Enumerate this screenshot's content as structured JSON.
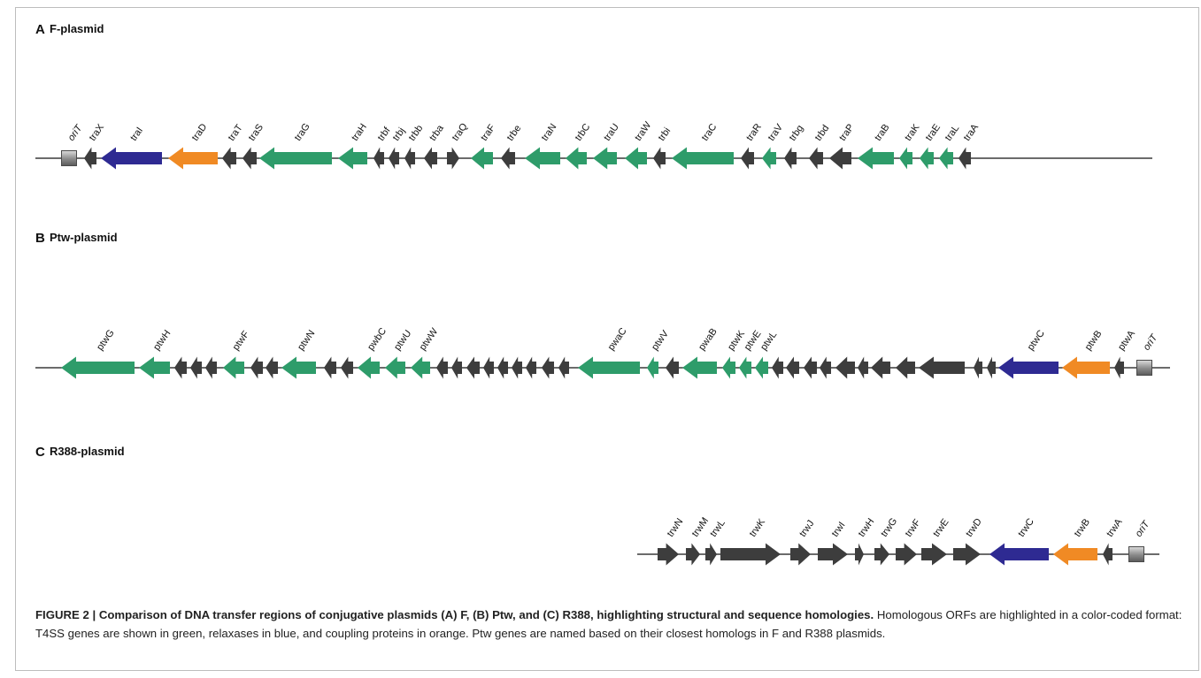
{
  "colors": {
    "t4ss": "#2e9c6a",
    "relaxase": "#2e2a92",
    "coupling": "#f08a24",
    "other": "#3d3d3d"
  },
  "panels": [
    {
      "letter": "A",
      "name": "F-plasmid",
      "genes": [
        {
          "label": "oriT",
          "type": "oriT"
        },
        {
          "label": "traX",
          "type": "other",
          "dir": "left"
        },
        {
          "label": "traI",
          "type": "relaxase",
          "dir": "left"
        },
        {
          "label": "traD",
          "type": "coupling",
          "dir": "left"
        },
        {
          "label": "traT",
          "type": "other",
          "dir": "left"
        },
        {
          "label": "traS",
          "type": "other",
          "dir": "left"
        },
        {
          "label": "traG",
          "type": "t4ss",
          "dir": "left"
        },
        {
          "label": "traH",
          "type": "t4ss",
          "dir": "left"
        },
        {
          "label": "trbf",
          "type": "other",
          "dir": "left"
        },
        {
          "label": "trbj",
          "type": "other",
          "dir": "left"
        },
        {
          "label": "trbb",
          "type": "other",
          "dir": "left"
        },
        {
          "label": "trba",
          "type": "other",
          "dir": "left"
        },
        {
          "label": "traQ",
          "type": "other",
          "dir": "right"
        },
        {
          "label": "traF",
          "type": "t4ss",
          "dir": "left"
        },
        {
          "label": "trbe",
          "type": "other",
          "dir": "left"
        },
        {
          "label": "traN",
          "type": "t4ss",
          "dir": "left"
        },
        {
          "label": "trbC",
          "type": "t4ss",
          "dir": "left"
        },
        {
          "label": "traU",
          "type": "t4ss",
          "dir": "left"
        },
        {
          "label": "traW",
          "type": "t4ss",
          "dir": "left"
        },
        {
          "label": "trbi",
          "type": "other",
          "dir": "left"
        },
        {
          "label": "traC",
          "type": "t4ss",
          "dir": "left"
        },
        {
          "label": "traR",
          "type": "other",
          "dir": "left"
        },
        {
          "label": "traV",
          "type": "t4ss",
          "dir": "left"
        },
        {
          "label": "trbg",
          "type": "other",
          "dir": "left"
        },
        {
          "label": "trbd",
          "type": "other",
          "dir": "left"
        },
        {
          "label": "traP",
          "type": "other",
          "dir": "left"
        },
        {
          "label": "traB",
          "type": "t4ss",
          "dir": "left"
        },
        {
          "label": "traK",
          "type": "t4ss",
          "dir": "left"
        },
        {
          "label": "traE",
          "type": "t4ss",
          "dir": "left"
        },
        {
          "label": "traL",
          "type": "t4ss",
          "dir": "left"
        },
        {
          "label": "traA",
          "type": "other",
          "dir": "left"
        }
      ]
    },
    {
      "letter": "B",
      "name": "Ptw-plasmid",
      "genes": [
        {
          "label": "ptwG",
          "type": "t4ss",
          "dir": "left"
        },
        {
          "label": "ptwH",
          "type": "t4ss",
          "dir": "left"
        },
        {
          "label": "",
          "type": "other",
          "dir": "left"
        },
        {
          "label": "",
          "type": "other",
          "dir": "left"
        },
        {
          "label": "",
          "type": "other",
          "dir": "left"
        },
        {
          "label": "ptwF",
          "type": "t4ss",
          "dir": "left"
        },
        {
          "label": "",
          "type": "other",
          "dir": "left"
        },
        {
          "label": "",
          "type": "other",
          "dir": "left"
        },
        {
          "label": "ptwN",
          "type": "t4ss",
          "dir": "left"
        },
        {
          "label": "",
          "type": "other",
          "dir": "left"
        },
        {
          "label": "",
          "type": "other",
          "dir": "left"
        },
        {
          "label": "pwbC",
          "type": "t4ss",
          "dir": "left"
        },
        {
          "label": "ptwU",
          "type": "t4ss",
          "dir": "left"
        },
        {
          "label": "ptwW",
          "type": "t4ss",
          "dir": "left"
        },
        {
          "label": "",
          "type": "other",
          "dir": "left"
        },
        {
          "label": "",
          "type": "other",
          "dir": "left"
        },
        {
          "label": "",
          "type": "other",
          "dir": "left"
        },
        {
          "label": "",
          "type": "other",
          "dir": "left"
        },
        {
          "label": "",
          "type": "other",
          "dir": "left"
        },
        {
          "label": "",
          "type": "other",
          "dir": "left"
        },
        {
          "label": "",
          "type": "other",
          "dir": "left"
        },
        {
          "label": "",
          "type": "other",
          "dir": "left"
        },
        {
          "label": "",
          "type": "other",
          "dir": "left"
        },
        {
          "label": "pwaC",
          "type": "t4ss",
          "dir": "left"
        },
        {
          "label": "ptwV",
          "type": "t4ss",
          "dir": "left"
        },
        {
          "label": "",
          "type": "other",
          "dir": "left"
        },
        {
          "label": "pwaB",
          "type": "t4ss",
          "dir": "left"
        },
        {
          "label": "ptwK",
          "type": "t4ss",
          "dir": "left"
        },
        {
          "label": "ptwE",
          "type": "t4ss",
          "dir": "left"
        },
        {
          "label": "ptwL",
          "type": "t4ss",
          "dir": "left"
        },
        {
          "label": "",
          "type": "other",
          "dir": "left"
        },
        {
          "label": "",
          "type": "other",
          "dir": "left"
        },
        {
          "label": "",
          "type": "other",
          "dir": "left"
        },
        {
          "label": "",
          "type": "other",
          "dir": "left"
        },
        {
          "label": "",
          "type": "other",
          "dir": "left"
        },
        {
          "label": "",
          "type": "other",
          "dir": "left"
        },
        {
          "label": "",
          "type": "other",
          "dir": "left"
        },
        {
          "label": "",
          "type": "other",
          "dir": "left"
        },
        {
          "label": "",
          "type": "other",
          "dir": "left"
        },
        {
          "label": "",
          "type": "other",
          "dir": "left"
        },
        {
          "label": "",
          "type": "other",
          "dir": "left"
        },
        {
          "label": "ptwC",
          "type": "relaxase",
          "dir": "left"
        },
        {
          "label": "ptwB",
          "type": "coupling",
          "dir": "left"
        },
        {
          "label": "ptwA",
          "type": "other",
          "dir": "left"
        },
        {
          "label": "oriT",
          "type": "oriT"
        }
      ]
    },
    {
      "letter": "C",
      "name": "R388-plasmid",
      "genes": [
        {
          "label": "trwN",
          "type": "other",
          "dir": "right"
        },
        {
          "label": "trwM",
          "type": "other",
          "dir": "right"
        },
        {
          "label": "trwL",
          "type": "other",
          "dir": "right"
        },
        {
          "label": "trwK",
          "type": "other",
          "dir": "right"
        },
        {
          "label": "trwJ",
          "type": "other",
          "dir": "right"
        },
        {
          "label": "trwI",
          "type": "other",
          "dir": "right"
        },
        {
          "label": "trwH",
          "type": "other",
          "dir": "right"
        },
        {
          "label": "trwG",
          "type": "other",
          "dir": "right"
        },
        {
          "label": "trwF",
          "type": "other",
          "dir": "right"
        },
        {
          "label": "trwE",
          "type": "other",
          "dir": "right"
        },
        {
          "label": "trwD",
          "type": "other",
          "dir": "right"
        },
        {
          "label": "trwC",
          "type": "relaxase",
          "dir": "left"
        },
        {
          "label": "trwB",
          "type": "coupling",
          "dir": "left"
        },
        {
          "label": "trwA",
          "type": "other",
          "dir": "left"
        },
        {
          "label": "oriT",
          "type": "oriT"
        }
      ]
    }
  ],
  "caption": {
    "bold": "FIGURE 2 | Comparison of DNA transfer regions of conjugative plasmids (A) F, (B) Ptw, and (C) R388, highlighting structural and sequence homologies.",
    "text": " Homologous ORFs are highlighted in a color-coded format: T4SS genes are shown in green, relaxases in blue, and coupling proteins in orange. Ptw genes are named based on their closest homologs in F and R388 plasmids."
  }
}
